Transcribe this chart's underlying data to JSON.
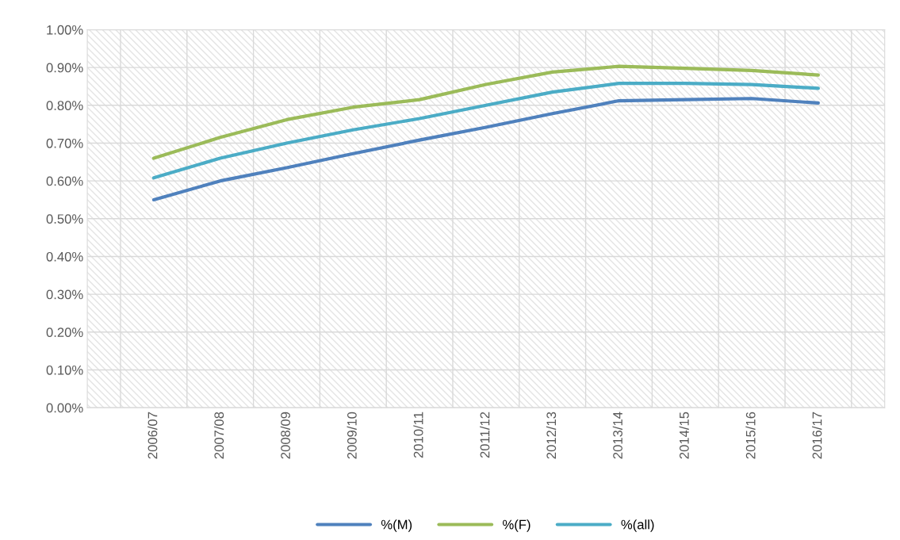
{
  "chart_data": {
    "type": "line",
    "categories": [
      "2006/07",
      "2007/08",
      "2008/09",
      "2009/10",
      "2010/11",
      "2011/12",
      "2012/13",
      "2013/14",
      "2014/15",
      "2015/16",
      "2016/17"
    ],
    "series": [
      {
        "name": "%(M)",
        "color": "#4f81bd",
        "values": [
          0.55,
          0.6,
          0.635,
          0.672,
          0.708,
          0.742,
          0.778,
          0.812,
          0.815,
          0.818,
          0.806
        ]
      },
      {
        "name": "%(F)",
        "color": "#9bbb59",
        "values": [
          0.66,
          0.715,
          0.762,
          0.795,
          0.815,
          0.855,
          0.888,
          0.903,
          0.898,
          0.892,
          0.88
        ]
      },
      {
        "name": "%(all)",
        "color": "#4bacc6",
        "values": [
          0.608,
          0.66,
          0.7,
          0.735,
          0.765,
          0.8,
          0.835,
          0.858,
          0.858,
          0.855,
          0.845
        ]
      }
    ],
    "ylim": [
      0,
      1
    ],
    "yticks": [
      {
        "value": 0,
        "label": "0.00%"
      },
      {
        "value": 0.1,
        "label": "0.10%"
      },
      {
        "value": 0.2,
        "label": "0.20%"
      },
      {
        "value": 0.3,
        "label": "0.30%"
      },
      {
        "value": 0.4,
        "label": "0.40%"
      },
      {
        "value": 0.5,
        "label": "0.50%"
      },
      {
        "value": 0.6,
        "label": "0.60%"
      },
      {
        "value": 0.7,
        "label": "0.70%"
      },
      {
        "value": 0.8,
        "label": "0.80%"
      },
      {
        "value": 0.9,
        "label": "0.90%"
      },
      {
        "value": 1,
        "label": "1.00%"
      }
    ],
    "grid": true,
    "legend": "bottom",
    "marker": "none",
    "line_style": "solid"
  }
}
